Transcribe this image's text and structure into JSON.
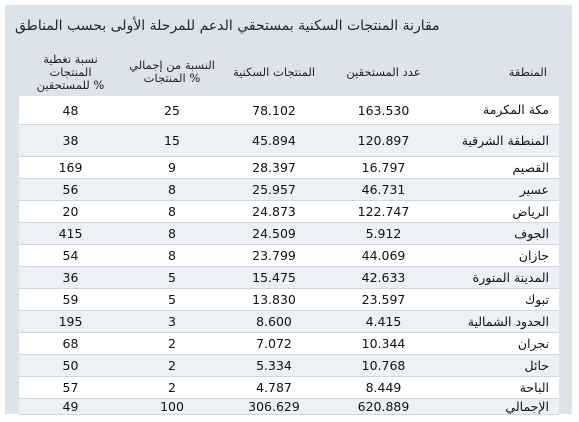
{
  "title": "مقارنة المنتجات السكنية بمستحقي الدعم للمرحلة الأولى بحسب المناطق",
  "headers": {
    "region": "المنطقة",
    "beneficiaries": "عدد المستحقين",
    "products": "المنتجات السكنية",
    "share": "النسبة من إجمالي المنتجات %",
    "coverage": "نسبة تغطية المنتجات للمستحقين %"
  },
  "rows": [
    {
      "region": "مكة المكرمة",
      "beneficiaries": "163.530",
      "products": "78.102",
      "share": "25",
      "coverage": "48"
    },
    {
      "region": "المنطقة الشرقية",
      "beneficiaries": "120.897",
      "products": "45.894",
      "share": "15",
      "coverage": "38"
    },
    {
      "region": "القصيم",
      "beneficiaries": "16.797",
      "products": "28.397",
      "share": "9",
      "coverage": "169"
    },
    {
      "region": "عسير",
      "beneficiaries": "46.731",
      "products": "25.957",
      "share": "8",
      "coverage": "56"
    },
    {
      "region": "الرياض",
      "beneficiaries": "122.747",
      "products": "24.873",
      "share": "8",
      "coverage": "20"
    },
    {
      "region": "الجوف",
      "beneficiaries": "5.912",
      "products": "24.509",
      "share": "8",
      "coverage": "415"
    },
    {
      "region": "جازان",
      "beneficiaries": "44.069",
      "products": "23.799",
      "share": "8",
      "coverage": "54"
    },
    {
      "region": "المدينة المنورة",
      "beneficiaries": "42.633",
      "products": "15.475",
      "share": "5",
      "coverage": "36"
    },
    {
      "region": "تبوك",
      "beneficiaries": "23.597",
      "products": "13.830",
      "share": "5",
      "coverage": "59"
    },
    {
      "region": "الحدود الشمالية",
      "beneficiaries": "4.415",
      "products": "8.600",
      "share": "3",
      "coverage": "195"
    },
    {
      "region": "نجران",
      "beneficiaries": "10.344",
      "products": "7.072",
      "share": "2",
      "coverage": "68"
    },
    {
      "region": "حائل",
      "beneficiaries": "10.768",
      "products": "5.334",
      "share": "2",
      "coverage": "50"
    },
    {
      "region": "الباحة",
      "beneficiaries": "8.449",
      "products": "4.787",
      "share": "2",
      "coverage": "57"
    },
    {
      "region": "الإجمالي",
      "beneficiaries": "620.889",
      "products": "306.629",
      "share": "100",
      "coverage": "49"
    }
  ],
  "colors": {
    "frame": "#dde3ea",
    "row_shade": "#edf1f5",
    "row_plain": "#ffffff",
    "text": "#111111"
  }
}
